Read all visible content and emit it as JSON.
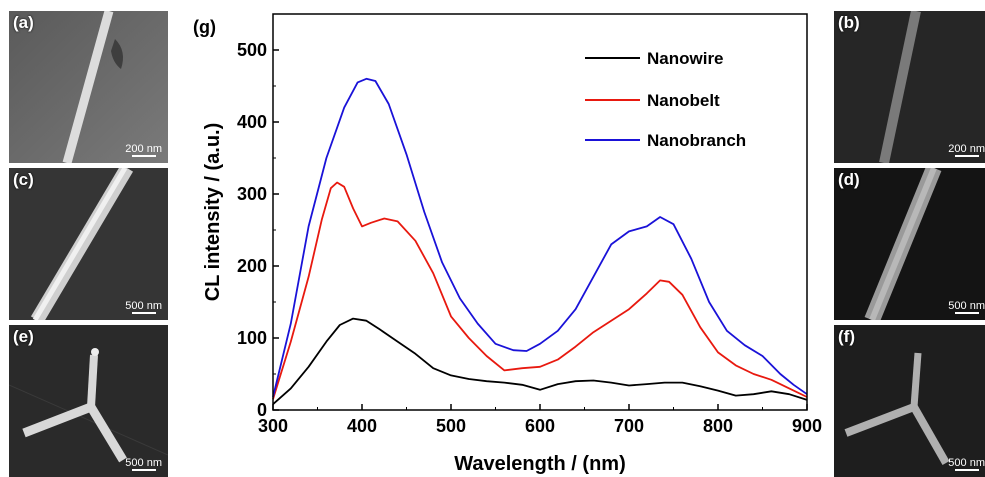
{
  "panels": {
    "a": {
      "label": "(a)",
      "scale": "200 nm"
    },
    "b": {
      "label": "(b)",
      "scale": "200 nm"
    },
    "c": {
      "label": "(c)",
      "scale": "500 nm"
    },
    "d": {
      "label": "(d)",
      "scale": "500 nm"
    },
    "e": {
      "label": "(e)",
      "scale": "500 nm"
    },
    "f": {
      "label": "(f)",
      "scale": "500 nm"
    }
  },
  "chart_data": {
    "type": "line",
    "panel_label": "(g)",
    "xlabel": "Wavelength / (nm)",
    "ylabel": "CL intensity / (a.u.)",
    "xlim": [
      300,
      900
    ],
    "ylim": [
      0,
      550
    ],
    "xticks": [
      300,
      400,
      500,
      600,
      700,
      800,
      900
    ],
    "yticks": [
      0,
      100,
      200,
      300,
      400,
      500
    ],
    "legend_position": "top-right",
    "series": [
      {
        "name": "Nanowire",
        "color": "#000000",
        "points": [
          [
            300,
            8
          ],
          [
            320,
            30
          ],
          [
            340,
            60
          ],
          [
            360,
            95
          ],
          [
            375,
            118
          ],
          [
            390,
            127
          ],
          [
            405,
            124
          ],
          [
            420,
            112
          ],
          [
            440,
            95
          ],
          [
            460,
            78
          ],
          [
            480,
            58
          ],
          [
            500,
            48
          ],
          [
            520,
            43
          ],
          [
            540,
            40
          ],
          [
            560,
            38
          ],
          [
            580,
            35
          ],
          [
            600,
            28
          ],
          [
            620,
            36
          ],
          [
            640,
            40
          ],
          [
            660,
            41
          ],
          [
            680,
            38
          ],
          [
            700,
            34
          ],
          [
            720,
            36
          ],
          [
            740,
            38
          ],
          [
            760,
            38
          ],
          [
            780,
            33
          ],
          [
            800,
            27
          ],
          [
            820,
            20
          ],
          [
            840,
            22
          ],
          [
            860,
            26
          ],
          [
            880,
            22
          ],
          [
            900,
            14
          ]
        ]
      },
      {
        "name": "Nanobelt",
        "color": "#e8190f",
        "points": [
          [
            300,
            15
          ],
          [
            320,
            95
          ],
          [
            340,
            185
          ],
          [
            355,
            265
          ],
          [
            365,
            308
          ],
          [
            372,
            316
          ],
          [
            380,
            310
          ],
          [
            390,
            280
          ],
          [
            400,
            255
          ],
          [
            410,
            260
          ],
          [
            425,
            266
          ],
          [
            440,
            262
          ],
          [
            460,
            235
          ],
          [
            480,
            190
          ],
          [
            500,
            130
          ],
          [
            520,
            100
          ],
          [
            540,
            75
          ],
          [
            560,
            55
          ],
          [
            580,
            58
          ],
          [
            600,
            60
          ],
          [
            620,
            70
          ],
          [
            640,
            88
          ],
          [
            660,
            108
          ],
          [
            680,
            124
          ],
          [
            700,
            140
          ],
          [
            720,
            162
          ],
          [
            735,
            180
          ],
          [
            745,
            178
          ],
          [
            760,
            160
          ],
          [
            780,
            115
          ],
          [
            800,
            80
          ],
          [
            820,
            62
          ],
          [
            840,
            50
          ],
          [
            860,
            42
          ],
          [
            880,
            30
          ],
          [
            900,
            18
          ]
        ]
      },
      {
        "name": "Nanobranch",
        "color": "#1a12d8",
        "points": [
          [
            300,
            18
          ],
          [
            320,
            120
          ],
          [
            340,
            255
          ],
          [
            360,
            350
          ],
          [
            380,
            420
          ],
          [
            395,
            455
          ],
          [
            405,
            460
          ],
          [
            415,
            457
          ],
          [
            430,
            425
          ],
          [
            450,
            355
          ],
          [
            470,
            275
          ],
          [
            490,
            205
          ],
          [
            510,
            155
          ],
          [
            530,
            120
          ],
          [
            550,
            92
          ],
          [
            570,
            83
          ],
          [
            585,
            82
          ],
          [
            600,
            92
          ],
          [
            620,
            110
          ],
          [
            640,
            140
          ],
          [
            660,
            185
          ],
          [
            680,
            230
          ],
          [
            700,
            248
          ],
          [
            720,
            255
          ],
          [
            735,
            268
          ],
          [
            750,
            258
          ],
          [
            770,
            210
          ],
          [
            790,
            150
          ],
          [
            810,
            110
          ],
          [
            830,
            90
          ],
          [
            850,
            75
          ],
          [
            870,
            50
          ],
          [
            885,
            35
          ],
          [
            900,
            22
          ]
        ]
      }
    ]
  }
}
